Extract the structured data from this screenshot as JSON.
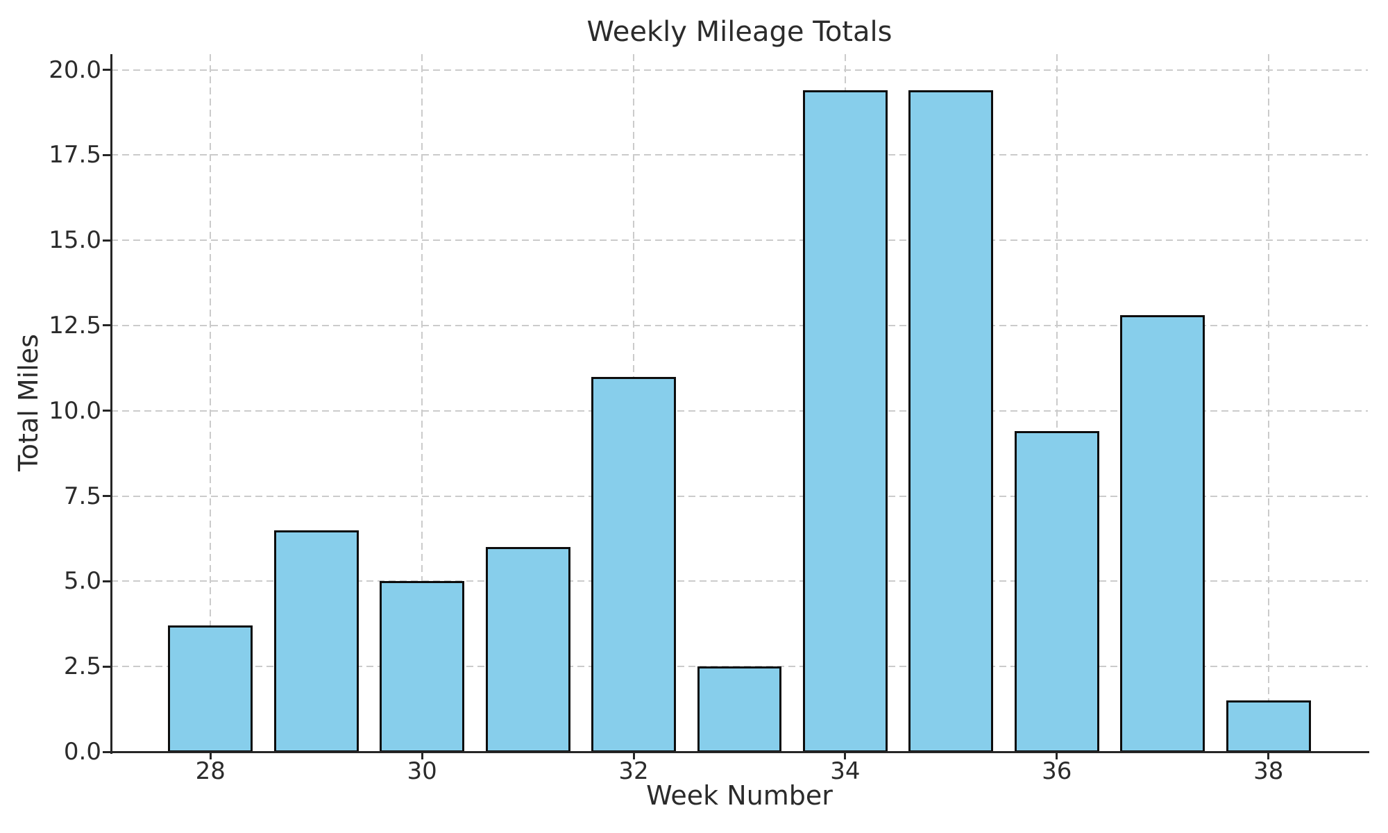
{
  "chart_data": {
    "type": "bar",
    "title": "Weekly Mileage Totals",
    "xlabel": "Week Number",
    "ylabel": "Total Miles",
    "categories": [
      28,
      29,
      30,
      31,
      32,
      33,
      34,
      35,
      36,
      37,
      38
    ],
    "values": [
      3.7,
      6.5,
      5.0,
      6.0,
      11.0,
      2.5,
      19.4,
      19.4,
      9.4,
      12.8,
      1.5
    ],
    "xticks": [
      28,
      30,
      32,
      34,
      36,
      38
    ],
    "xtick_labels": [
      "28",
      "30",
      "32",
      "34",
      "36",
      "38"
    ],
    "yticks": [
      0,
      2.5,
      5,
      7.5,
      10,
      12.5,
      15,
      17.5,
      20
    ],
    "ytick_labels": [
      "0.0",
      "2.5",
      "5.0",
      "7.5",
      "10.0",
      "12.5",
      "15.0",
      "17.5",
      "20.0"
    ],
    "xlim": [
      27.06,
      38.94
    ],
    "ylim": [
      0,
      20.46
    ],
    "bar_width_units": 0.8,
    "grid": true,
    "legend_position": "none",
    "colors": {
      "bar_fill": "#87CEEB",
      "bar_edge": "#0d0d0d",
      "grid": "#cbcbcb",
      "axis": "#262626",
      "text": "#2b2b2b",
      "background": "#ffffff"
    }
  }
}
